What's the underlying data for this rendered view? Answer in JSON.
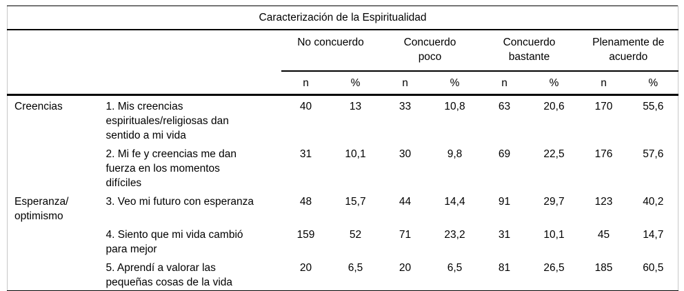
{
  "table": {
    "title": "Caracterización de la Espiritualidad",
    "col_groups": [
      {
        "label": "No concuerdo"
      },
      {
        "label": "Concuerdo\npoco"
      },
      {
        "label": "Concuerdo\nbastante"
      },
      {
        "label": "Plenamente de\nacuerdo"
      }
    ],
    "subheaders": {
      "n": "n",
      "pct": "%"
    },
    "rows": [
      {
        "category": "Creencias",
        "item": "1. Mis creencias\nespirituales/religiosas dan\nsentido a mi vida",
        "values": [
          "40",
          "13",
          "33",
          "10,8",
          "63",
          "20,6",
          "170",
          "55,6"
        ]
      },
      {
        "category": "",
        "item": "2. Mi fe y creencias me dan\nfuerza en los momentos\ndifíciles",
        "values": [
          "31",
          "10,1",
          "30",
          "9,8",
          "69",
          "22,5",
          "176",
          "57,6"
        ]
      },
      {
        "category": "Esperanza/\noptimismo",
        "item": "3. Veo mi futuro con esperanza",
        "values": [
          "48",
          "15,7",
          "44",
          "14,4",
          "91",
          "29,7",
          "123",
          "40,2"
        ]
      },
      {
        "category": "",
        "item": "4. Siento que mi vida cambió\npara mejor",
        "values": [
          "159",
          "52",
          "71",
          "23,2",
          "31",
          "10,1",
          "45",
          "14,7"
        ]
      },
      {
        "category": "",
        "item": "5. Aprendí a valorar las\npequeñas cosas de la vida",
        "values": [
          "20",
          "6,5",
          "20",
          "6,5",
          "81",
          "26,5",
          "185",
          "60,5"
        ]
      }
    ]
  }
}
